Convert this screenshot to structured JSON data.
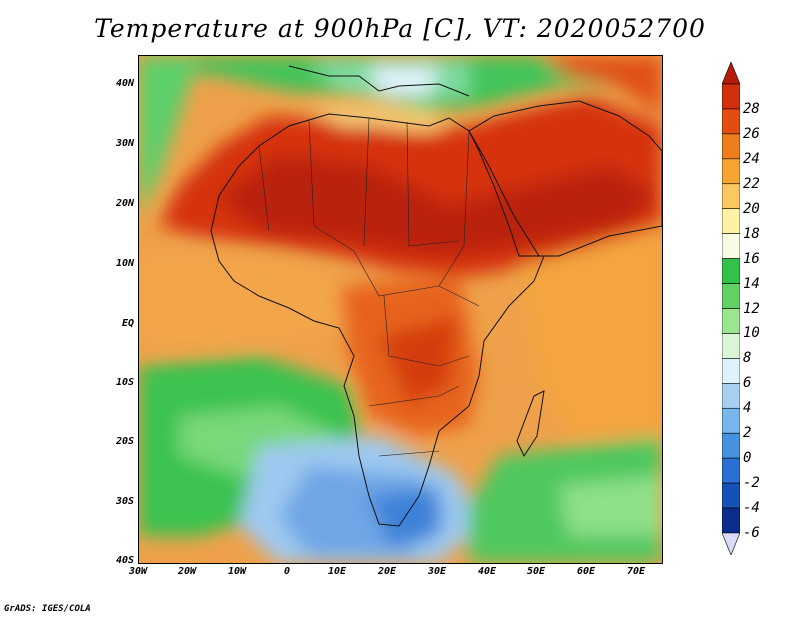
{
  "title": "Temperature at 900hPa [C], VT: 2020052700",
  "footer": "GrADS: IGES/COLA",
  "lat_labels": [
    "40N",
    "30N",
    "20N",
    "10N",
    "EQ",
    "10S",
    "20S",
    "30S",
    "40S"
  ],
  "lon_labels": [
    "30W",
    "20W",
    "10W",
    "0",
    "10E",
    "20E",
    "30E",
    "40E",
    "50E",
    "60E",
    "70E"
  ],
  "colorbar": {
    "labels": [
      "28",
      "26",
      "24",
      "22",
      "20",
      "18",
      "16",
      "14",
      "12",
      "10",
      "8",
      "6",
      "4",
      "2",
      "0",
      "-2",
      "-4",
      "-6"
    ],
    "colors": [
      "#b51c0a",
      "#d2300c",
      "#e44d12",
      "#ef7d1b",
      "#f6a532",
      "#fac860",
      "#fff1a6",
      "#f7fbe4",
      "#32c24c",
      "#61d163",
      "#9be490",
      "#d9f5d6",
      "#dff1fb",
      "#a6d0f2",
      "#78b6eb",
      "#4692e0",
      "#2c6fd5",
      "#1552b8",
      "#0b2e8e",
      "#d9dbf8"
    ]
  }
}
